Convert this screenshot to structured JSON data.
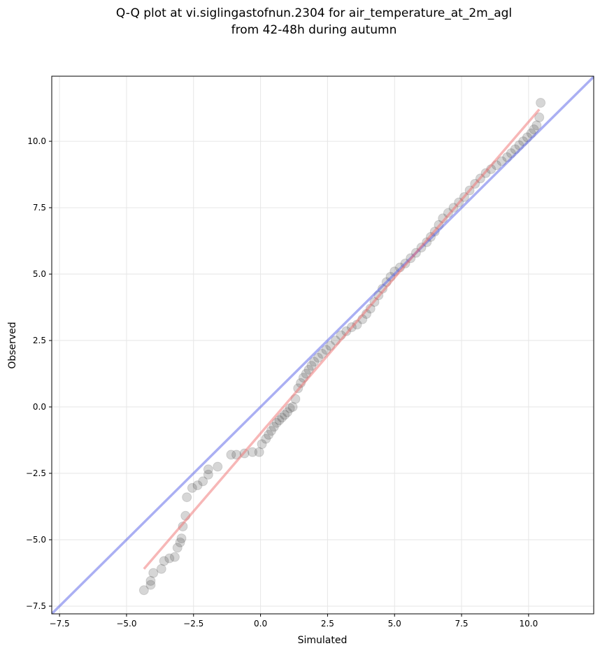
{
  "chart_data": {
    "type": "scatter",
    "title": [
      "Q-Q plot at vi.siglingastofnun.2304 for air_temperature_at_2m_agl",
      "from 42-48h during autumn"
    ],
    "x_label": "Simulated",
    "y_label": "Observed",
    "xlim": [
      -7.79,
      12.43
    ],
    "ylim": [
      -7.79,
      12.45
    ],
    "xticks": [
      {
        "value": -7.5,
        "label": "−7.5"
      },
      {
        "value": -5,
        "label": "−5.0"
      },
      {
        "value": -2.5,
        "label": "−2.5"
      },
      {
        "value": 0,
        "label": "0.0"
      },
      {
        "value": 2.5,
        "label": "2.5"
      },
      {
        "value": 5,
        "label": "5.0"
      },
      {
        "value": 7.5,
        "label": "7.5"
      },
      {
        "value": 10,
        "label": "10.0"
      }
    ],
    "yticks": [
      {
        "value": -7.5,
        "label": "−7.5"
      },
      {
        "value": -5,
        "label": "−5.0"
      },
      {
        "value": -2.5,
        "label": "−2.5"
      },
      {
        "value": 0,
        "label": "0.0"
      },
      {
        "value": 2.5,
        "label": "2.5"
      },
      {
        "value": 5,
        "label": "5.0"
      },
      {
        "value": 7.5,
        "label": "7.5"
      },
      {
        "value": 10,
        "label": "10.0"
      }
    ],
    "grid": true,
    "point_color": "#444444",
    "x": [
      -4.35,
      -4.1,
      -4.1,
      -4.0,
      -3.7,
      -3.6,
      -3.4,
      -3.2,
      -3.1,
      -3.0,
      -2.95,
      -2.9,
      -2.8,
      -2.75,
      -2.55,
      -2.35,
      -2.15,
      -1.95,
      -1.95,
      -1.6,
      -1.1,
      -0.9,
      -0.6,
      -0.3,
      -0.05,
      0.05,
      0.2,
      0.3,
      0.4,
      0.5,
      0.6,
      0.7,
      0.8,
      0.9,
      1.0,
      1.1,
      1.2,
      1.3,
      1.4,
      1.5,
      1.6,
      1.7,
      1.8,
      1.9,
      2.0,
      2.15,
      2.3,
      2.45,
      2.6,
      2.8,
      3.0,
      3.2,
      3.4,
      3.6,
      3.8,
      3.95,
      4.1,
      4.25,
      4.4,
      4.55,
      4.7,
      4.85,
      5.0,
      5.2,
      5.4,
      5.6,
      5.8,
      6.0,
      6.2,
      6.35,
      6.5,
      6.65,
      6.8,
      7.0,
      7.2,
      7.4,
      7.6,
      7.8,
      8.0,
      8.2,
      8.4,
      8.6,
      8.8,
      9.0,
      9.2,
      9.35,
      9.5,
      9.65,
      9.8,
      9.95,
      10.1,
      10.2,
      10.3,
      10.4,
      10.45
    ],
    "y": [
      -6.9,
      -6.7,
      -6.55,
      -6.25,
      -6.1,
      -5.8,
      -5.7,
      -5.65,
      -5.3,
      -5.1,
      -4.95,
      -4.5,
      -4.1,
      -3.4,
      -3.05,
      -2.95,
      -2.8,
      -2.55,
      -2.35,
      -2.25,
      -1.8,
      -1.8,
      -1.75,
      -1.7,
      -1.7,
      -1.4,
      -1.2,
      -1.05,
      -0.9,
      -0.75,
      -0.6,
      -0.5,
      -0.4,
      -0.3,
      -0.2,
      -0.05,
      0.0,
      0.3,
      0.7,
      0.9,
      1.1,
      1.25,
      1.4,
      1.55,
      1.7,
      1.85,
      2.0,
      2.15,
      2.3,
      2.5,
      2.7,
      2.85,
      3.0,
      3.1,
      3.3,
      3.5,
      3.7,
      3.95,
      4.2,
      4.45,
      4.7,
      4.9,
      5.1,
      5.25,
      5.4,
      5.6,
      5.8,
      6.0,
      6.2,
      6.4,
      6.6,
      6.85,
      7.1,
      7.3,
      7.5,
      7.7,
      7.9,
      8.15,
      8.4,
      8.6,
      8.8,
      8.95,
      9.1,
      9.25,
      9.4,
      9.55,
      9.7,
      9.85,
      10.0,
      10.15,
      10.3,
      10.45,
      10.6,
      10.9,
      11.45
    ],
    "lines": [
      {
        "color": "#5560e8",
        "x": [
          -7.79,
          12.43
        ],
        "y": [
          -7.79,
          12.43
        ]
      },
      {
        "color": "#f07070",
        "x": [
          -4.35,
          10.4
        ],
        "y": [
          -6.1,
          11.2
        ]
      }
    ]
  }
}
